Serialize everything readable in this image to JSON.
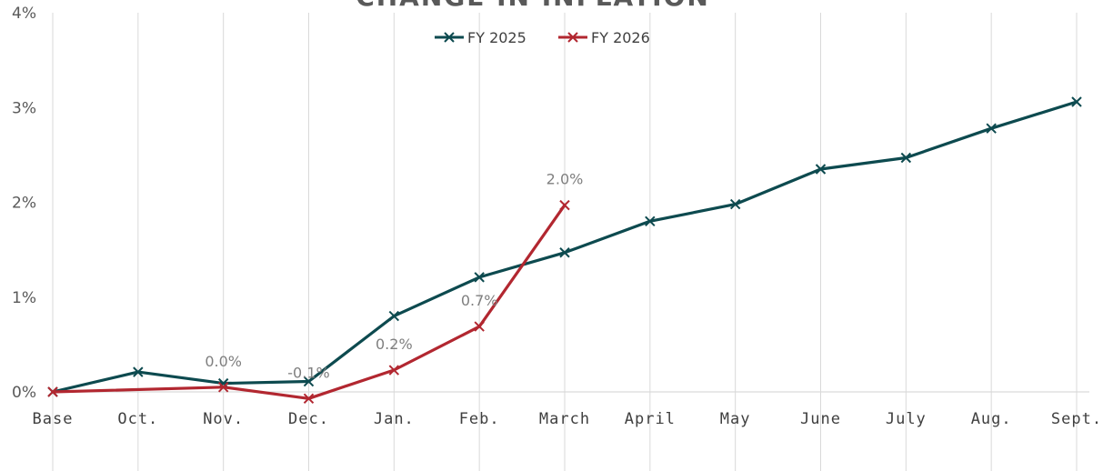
{
  "chart_data": {
    "type": "line",
    "title": "CHANGE IN INFLATION",
    "categories": [
      "Base",
      "Oct.",
      "Nov.",
      "Dec.",
      "Jan.",
      "Feb.",
      "March",
      "April",
      "May",
      "June",
      "July",
      "Aug.",
      "Sept."
    ],
    "ylim": [
      0,
      4
    ],
    "yticks": [
      "0%",
      "1%",
      "2%",
      "3%",
      "4%"
    ],
    "grid": "vertical",
    "legend_position": "top-center",
    "series": [
      {
        "name": "FY 2025",
        "color": "#0d4a4f",
        "marker": "x",
        "values": [
          0,
          0.21,
          0.09,
          0.11,
          0.8,
          1.21,
          1.47,
          1.8,
          1.98,
          2.35,
          2.47,
          2.78,
          3.06
        ]
      },
      {
        "name": "FY 2026",
        "color": "#b22730",
        "marker": "x",
        "values": [
          0,
          null,
          0.05,
          -0.07,
          0.23,
          0.69,
          1.97,
          null,
          null,
          null,
          null,
          null,
          null
        ],
        "data_labels": [
          null,
          null,
          "0.0%",
          "-0.1%",
          "0.2%",
          "0.7%",
          "2.0%",
          null,
          null,
          null,
          null,
          null,
          null
        ]
      }
    ]
  }
}
